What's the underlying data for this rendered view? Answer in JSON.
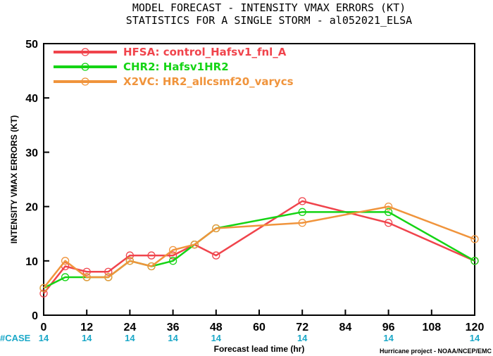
{
  "chart_data": {
    "type": "line",
    "title": "MODEL FORECAST - INTENSITY VMAX ERRORS (KT)",
    "subtitle": "STATISTICS FOR A SINGLE STORM - al052021_ELSA",
    "xlabel": "Forecast lead time (hr)",
    "ylabel": "INTENSITY VMAX ERRORS (KT)",
    "xlim": [
      0,
      120
    ],
    "ylim": [
      0,
      50
    ],
    "xticks": [
      0,
      12,
      24,
      36,
      48,
      60,
      72,
      84,
      96,
      108,
      120
    ],
    "yticks": [
      0,
      10,
      20,
      30,
      40,
      50
    ],
    "legend_position": "top-left",
    "grid": false,
    "series": [
      {
        "code": "HFSA:",
        "name": "control_Hafsv1_fnl_A",
        "color": "#f0444c",
        "x": [
          0,
          6,
          12,
          18,
          24,
          30,
          36,
          42,
          48,
          72,
          96,
          120
        ],
        "values": [
          4,
          9,
          8,
          8,
          11,
          11,
          11,
          13,
          11,
          21,
          17,
          10
        ]
      },
      {
        "code": "CHR2:",
        "name": "Hafsv1HR2",
        "color": "#14d414",
        "x": [
          0,
          6,
          12,
          18,
          24,
          30,
          36,
          42,
          48,
          72,
          96,
          120
        ],
        "values": [
          5,
          7,
          7,
          7,
          10,
          9,
          10,
          13,
          16,
          19,
          19,
          10
        ]
      },
      {
        "code": "X2VC:",
        "name": "HR2_allcsmf20_varycs",
        "color": "#f0943c",
        "x": [
          0,
          6,
          12,
          18,
          24,
          30,
          36,
          42,
          48,
          72,
          96,
          120
        ],
        "values": [
          5,
          10,
          7,
          7,
          10,
          9,
          12,
          13,
          16,
          17,
          20,
          14
        ]
      }
    ],
    "case_label": "#CASE",
    "case_x": [
      0,
      12,
      24,
      36,
      48,
      72,
      96,
      120
    ],
    "case_counts": [
      "14",
      "14",
      "14",
      "14",
      "14",
      "14",
      "14",
      "14"
    ],
    "credit": "Hurricane project - NOAA/NCEP/EMC"
  }
}
